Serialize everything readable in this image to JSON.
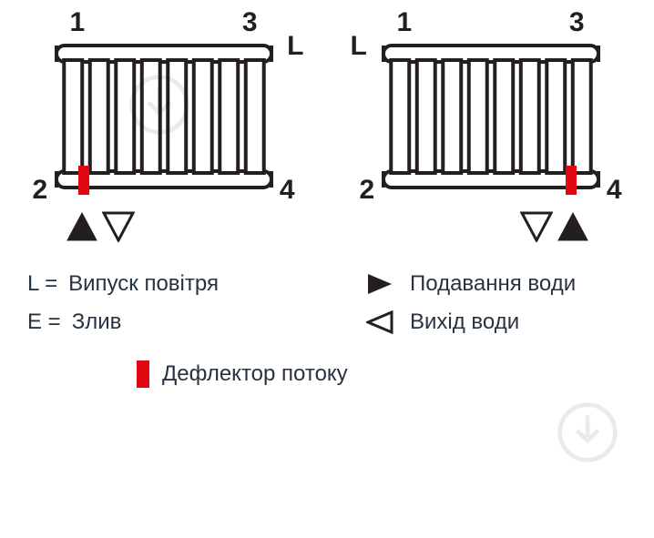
{
  "colors": {
    "stroke": "#231f20",
    "deflector": "#e30613",
    "label": "#231f20",
    "legend": "#27333f",
    "triangle": "#231f20"
  },
  "radiator": {
    "tubes": 8,
    "tube_width_ratio": 0.7,
    "stroke_width": 4,
    "deflector_color": "#e30613"
  },
  "block_a": {
    "connectors": {
      "tl": "1",
      "tr": "3",
      "bl": "2",
      "br": "4"
    },
    "l_label": "L",
    "deflector_side": "left",
    "arrows": [
      "filled",
      "hollow"
    ]
  },
  "block_b": {
    "connectors": {
      "tl": "1",
      "tr": "3",
      "bl": "2",
      "br": "4"
    },
    "l_label": "L",
    "deflector_side": "right",
    "arrows": [
      "filled",
      "hollow"
    ]
  },
  "legend": {
    "l_sym": "L =",
    "l_text": "Випуск повітря",
    "e_sym": "E =",
    "e_text": "Злив",
    "supply_text": "Подавання води",
    "outlet_text": "Вихід води",
    "deflector_text": "Дефлектор потоку"
  }
}
